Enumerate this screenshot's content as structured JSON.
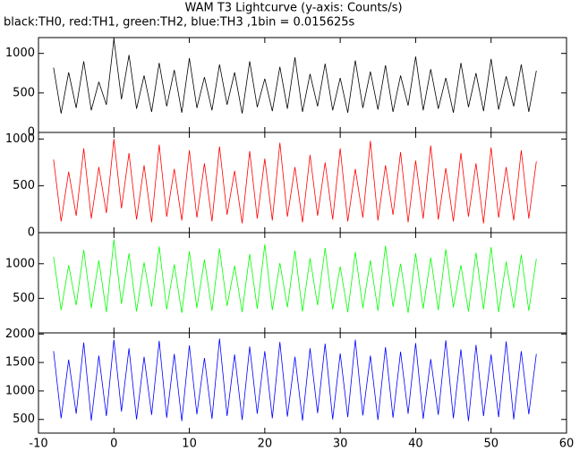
{
  "title": "WAM T3 Lightcurve (y-axis: Counts/s)",
  "subtitle": "black:TH0, red:TH1, green:TH2, blue:TH3 ,1bin = 0.015625s",
  "chart_data": [
    {
      "type": "line",
      "x": [
        -8,
        -7,
        -6,
        -5,
        -4,
        -3,
        -2,
        -1,
        0,
        1,
        2,
        3,
        4,
        5,
        6,
        7,
        8,
        9,
        10,
        11,
        12,
        13,
        14,
        15,
        16,
        17,
        18,
        19,
        20,
        21,
        22,
        23,
        24,
        25,
        26,
        27,
        28,
        29,
        30,
        31,
        32,
        33,
        34,
        35,
        36,
        37,
        38,
        39,
        40,
        41,
        42,
        43,
        44,
        45,
        46,
        47,
        48,
        49,
        50,
        51,
        52,
        53,
        54,
        55,
        56
      ],
      "series": [
        {
          "color": "#000000",
          "values": [
            820,
            240,
            760,
            310,
            900,
            280,
            640,
            350,
            1180,
            420,
            980,
            300,
            720,
            260,
            880,
            330,
            790,
            250,
            940,
            310,
            700,
            280,
            860,
            350,
            760,
            240,
            900,
            320,
            680,
            270,
            830,
            300,
            950,
            260,
            740,
            330,
            870,
            280,
            690,
            250,
            910,
            310,
            770,
            290,
            850,
            260,
            720,
            340,
            960,
            280,
            800,
            300,
            690,
            250,
            880,
            320,
            750,
            270,
            930,
            290,
            710,
            330,
            860,
            260,
            780
          ]
        }
      ],
      "xlim": [
        -10,
        60
      ],
      "xticks": [
        -10,
        0,
        10,
        20,
        30,
        40,
        50,
        60
      ],
      "ylim": [
        0,
        1200
      ],
      "yticks": [
        0,
        500,
        1000
      ]
    },
    {
      "type": "line",
      "x": [
        -8,
        -7,
        -6,
        -5,
        -4,
        -3,
        -2,
        -1,
        0,
        1,
        2,
        3,
        4,
        5,
        6,
        7,
        8,
        9,
        10,
        11,
        12,
        13,
        14,
        15,
        16,
        17,
        18,
        19,
        20,
        21,
        22,
        23,
        24,
        25,
        26,
        27,
        28,
        29,
        30,
        31,
        32,
        33,
        34,
        35,
        36,
        37,
        38,
        39,
        40,
        41,
        42,
        43,
        44,
        45,
        46,
        47,
        48,
        49,
        50,
        51,
        52,
        53,
        54,
        55,
        56
      ],
      "series": [
        {
          "color": "#ff0000",
          "values": [
            780,
            120,
            650,
            180,
            900,
            150,
            700,
            210,
            1000,
            260,
            850,
            140,
            720,
            110,
            940,
            170,
            680,
            130,
            880,
            160,
            740,
            120,
            920,
            190,
            660,
            100,
            870,
            150,
            790,
            130,
            960,
            170,
            700,
            110,
            830,
            180,
            750,
            140,
            900,
            120,
            680,
            160,
            980,
            130,
            720,
            190,
            860,
            110,
            770,
            150,
            930,
            140,
            690,
            120,
            850,
            170,
            740,
            100,
            910,
            160,
            700,
            130,
            880,
            150,
            760
          ]
        }
      ],
      "xlim": [
        -10,
        60
      ],
      "xticks": [
        -10,
        0,
        10,
        20,
        30,
        40,
        50,
        60
      ],
      "ylim": [
        0,
        1070
      ],
      "yticks": [
        0,
        500,
        1000
      ]
    },
    {
      "type": "line",
      "x": [
        -8,
        -7,
        -6,
        -5,
        -4,
        -3,
        -2,
        -1,
        0,
        1,
        2,
        3,
        4,
        5,
        6,
        7,
        8,
        9,
        10,
        11,
        12,
        13,
        14,
        15,
        16,
        17,
        18,
        19,
        20,
        21,
        22,
        23,
        24,
        25,
        26,
        27,
        28,
        29,
        30,
        31,
        32,
        33,
        34,
        35,
        36,
        37,
        38,
        39,
        40,
        41,
        42,
        43,
        44,
        45,
        46,
        47,
        48,
        49,
        50,
        51,
        52,
        53,
        54,
        55,
        56
      ],
      "series": [
        {
          "color": "#00ff00",
          "values": [
            1100,
            330,
            980,
            400,
            1200,
            360,
            1050,
            300,
            1350,
            420,
            1150,
            310,
            1020,
            380,
            1250,
            340,
            990,
            290,
            1180,
            360,
            1060,
            320,
            1220,
            390,
            970,
            300,
            1140,
            350,
            1280,
            330,
            1010,
            370,
            1190,
            310,
            1080,
            400,
            1230,
            340,
            960,
            300,
            1170,
            360,
            1050,
            320,
            1260,
            380,
            1000,
            290,
            1150,
            350,
            1090,
            330,
            1210,
            370,
            980,
            310,
            1160,
            340,
            1240,
            300,
            1030,
            360,
            1130,
            320,
            1070
          ]
        }
      ],
      "xlim": [
        -10,
        60
      ],
      "xticks": [
        -10,
        0,
        10,
        20,
        30,
        40,
        50,
        60
      ],
      "ylim": [
        0,
        1450
      ],
      "yticks": [
        500,
        1000
      ]
    },
    {
      "type": "line",
      "x": [
        -8,
        -7,
        -6,
        -5,
        -4,
        -3,
        -2,
        -1,
        0,
        1,
        2,
        3,
        4,
        5,
        6,
        7,
        8,
        9,
        10,
        11,
        12,
        13,
        14,
        15,
        16,
        17,
        18,
        19,
        20,
        21,
        22,
        23,
        24,
        25,
        26,
        27,
        28,
        29,
        30,
        31,
        32,
        33,
        34,
        35,
        36,
        37,
        38,
        39,
        40,
        41,
        42,
        43,
        44,
        45,
        46,
        47,
        48,
        49,
        50,
        51,
        52,
        53,
        54,
        55,
        56
      ],
      "series": [
        {
          "color": "#0000ff",
          "values": [
            1700,
            520,
            1550,
            600,
            1850,
            480,
            1620,
            560,
            1900,
            640,
            1750,
            500,
            1600,
            580,
            1880,
            530,
            1650,
            470,
            1800,
            590,
            1580,
            510,
            1920,
            560,
            1640,
            490,
            1780,
            600,
            1700,
            520,
            1860,
            550,
            1600,
            480,
            1750,
            610,
            1830,
            500,
            1660,
            540,
            1900,
            570,
            1620,
            490,
            1770,
            530,
            1690,
            600,
            1840,
            510,
            1560,
            580,
            1890,
            520,
            1730,
            470,
            1810,
            560,
            1640,
            540,
            1870,
            500,
            1700,
            590,
            1650
          ]
        }
      ],
      "xlim": [
        -10,
        60
      ],
      "xticks": [
        -10,
        0,
        10,
        20,
        30,
        40,
        50,
        60
      ],
      "ylim": [
        260,
        2020
      ],
      "yticks": [
        500,
        1000,
        1500,
        2000
      ]
    }
  ]
}
